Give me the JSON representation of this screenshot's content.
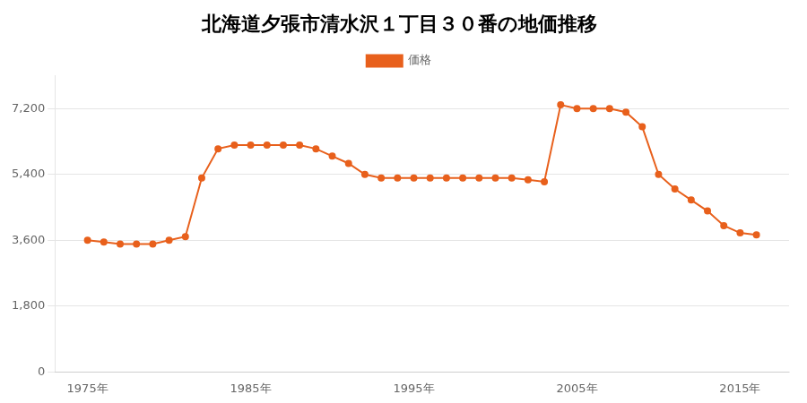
{
  "chart_data": {
    "type": "line",
    "title": "北海道夕張市清水沢１丁目３０番の地価推移",
    "x": [
      1975,
      1976,
      1977,
      1978,
      1979,
      1980,
      1981,
      1982,
      1983,
      1984,
      1985,
      1986,
      1987,
      1988,
      1989,
      1990,
      1991,
      1992,
      1993,
      1994,
      1995,
      1996,
      1997,
      1998,
      1999,
      2000,
      2001,
      2002,
      2003,
      2004,
      2005,
      2006,
      2007,
      2008,
      2009,
      2010,
      2011,
      2012,
      2013,
      2014,
      2015,
      2016
    ],
    "series": [
      {
        "name": "価格",
        "color": "#E8601C",
        "values": [
          3600,
          3550,
          3500,
          3500,
          3500,
          3600,
          3700,
          5300,
          6100,
          6200,
          6200,
          6200,
          6200,
          6200,
          6100,
          5900,
          5700,
          5400,
          5300,
          5300,
          5300,
          5300,
          5300,
          5300,
          5300,
          5300,
          5300,
          5250,
          5200,
          7300,
          7200,
          7200,
          7200,
          7100,
          6700,
          5400,
          5000,
          4700,
          4400,
          4000,
          3800,
          3750
        ]
      }
    ],
    "xlim": [
      1973,
      2018
    ],
    "xticks": [
      {
        "value": 1975,
        "label": "1975年"
      },
      {
        "value": 1985,
        "label": "1985年"
      },
      {
        "value": 1995,
        "label": "1995年"
      },
      {
        "value": 2005,
        "label": "2005年"
      },
      {
        "value": 2015,
        "label": "2015年"
      }
    ],
    "ylim": [
      0,
      8100
    ],
    "yticks": [
      0,
      {
        "value": 1800,
        "label": "1,800"
      },
      {
        "value": 3600,
        "label": "3,600"
      },
      {
        "value": 5400,
        "label": "5,400"
      },
      {
        "value": 7200,
        "label": "7,200"
      }
    ],
    "grid": "y",
    "legend": "top",
    "marker": "circle"
  }
}
